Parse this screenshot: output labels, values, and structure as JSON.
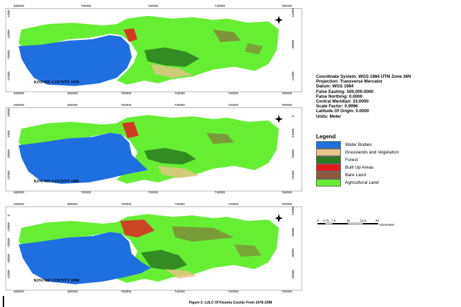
{
  "maps": [
    {
      "label": "KISUMU COUNTY 1978",
      "top_ticks": [
        "680000",
        "700000",
        "720000",
        "740000",
        "760000"
      ],
      "bottom_ticks": [
        "660000",
        "680000",
        "700000",
        "720000",
        "740000",
        "760000"
      ],
      "left_ticks": [
        "-1000",
        "-14000",
        "-20000",
        "-41000"
      ],
      "right_ticks": [
        "-14000",
        "-20000",
        "-41000"
      ]
    },
    {
      "label": "KISUMU COUNTY 1988",
      "top_ticks": [
        "660000",
        "680000",
        "700000",
        "720000",
        "740000",
        "760000"
      ],
      "bottom_ticks": [
        "680000",
        "700000",
        "720000",
        "740000",
        "760000"
      ],
      "left_ticks": [
        "10000",
        "-1000",
        "-20000",
        "-31000"
      ],
      "right_ticks": [
        "0",
        "-14000",
        "-20000",
        "-31000"
      ]
    },
    {
      "label": "KISUMU COUNTY 1998",
      "top_ticks": [
        "660000",
        "680000",
        "700000",
        "720000",
        "740000",
        "760000"
      ],
      "bottom_ticks": [
        "660000",
        "680000",
        "700000",
        "720000",
        "740000",
        "760000"
      ],
      "left_ticks": [
        "0",
        "-10000",
        "-20000",
        "-30000",
        "-41000"
      ],
      "right_ticks": [
        "-10000",
        "-20000",
        "-30000",
        "-40000"
      ]
    }
  ],
  "coordinate_info": [
    "Coordinate System: WGS 1984 UTM Zone 36N",
    "Projection: Transverse Mercator",
    "Datum: WGS 1984",
    "False Easting: 500,000.0000",
    "False Northing: 0.0000",
    "Central Meridian: 33.0000",
    "Scale Factor: 0.9996",
    "Latitude Of Origin: 0.0000",
    "Units: Meter"
  ],
  "legend": {
    "title": "Legend",
    "items": [
      {
        "label": "Water Bodies",
        "color": "#1f6fe0"
      },
      {
        "label": "Grasslands and Vegetation",
        "color": "#e9c38b"
      },
      {
        "label": "Forest",
        "color": "#2a7a1e"
      },
      {
        "label": "Built Up Areas",
        "color": "#e31a1c"
      },
      {
        "label": "Bare Land",
        "color": "#8b5a3c"
      },
      {
        "label": "Agricultural Land",
        "color": "#66ee33"
      }
    ]
  },
  "scale": {
    "ticks": [
      "0",
      "3.75",
      "7.5",
      "15",
      "22.5",
      "30"
    ],
    "unit": "Kilometers"
  },
  "caption": "Figure 2: LULC Of Kisumu County From 1978-1998"
}
